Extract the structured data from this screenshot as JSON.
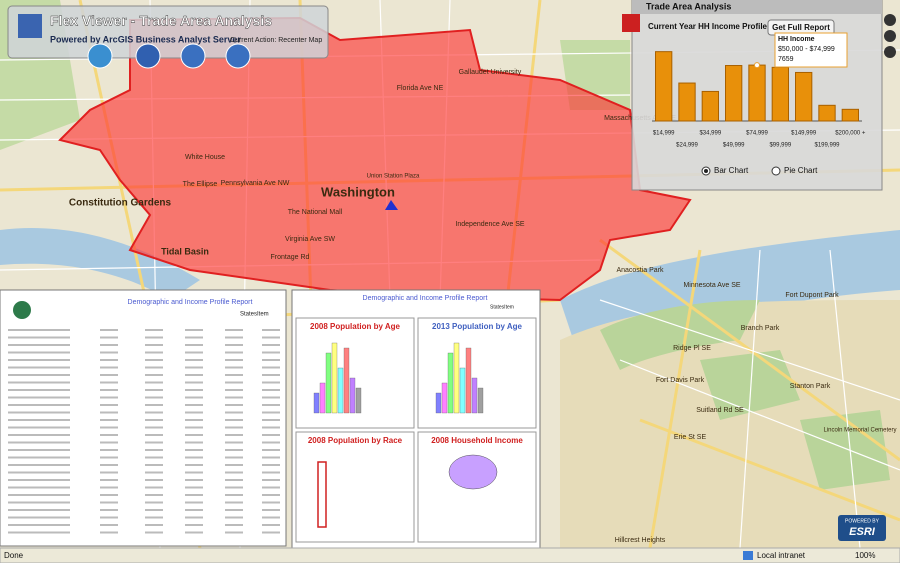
{
  "header": {
    "title": "Flex Viewer - Trade Area Analysis",
    "subtitle": "Powered by ArcGIS Business Analyst Server",
    "current_action": "Current Action: Recenter Map"
  },
  "panel": {
    "title": "Trade Area Analysis",
    "button": "Get Full Report",
    "chart_data": {
      "type": "bar",
      "title": "Current Year HH Income Profile",
      "categories": [
        "$14,999",
        "$24,999",
        "$34,999",
        "$49,999",
        "$74,999",
        "$99,999",
        "$149,999",
        "$199,999",
        "$200,000 +"
      ],
      "values": [
        9500,
        5200,
        4050,
        7600,
        7659,
        7350,
        6650,
        2150,
        1600
      ],
      "color": "#e8900a",
      "ylim": [
        0,
        10000
      ]
    },
    "tooltip": {
      "title": "HH Income",
      "range": "$50,000 - $74,999"
    },
    "options": [
      "Bar Chart",
      "Pie Chart"
    ]
  },
  "map": {
    "labels": [
      "Washington",
      "Constitution Gardens",
      "The Ellipse",
      "The National Mall",
      "Tidal Basin",
      "White House",
      "Pennsylvania Ave NW",
      "Massachusetts Ave NE",
      "Florida Ave NE",
      "Independence Ave SE",
      "Anacostia Park",
      "Fort Davis Park",
      "Branch Park",
      "Fort Dupont Park",
      "Stanton Park",
      "Lincoln Memorial Cemetery",
      "Gallaudet University",
      "Union Station Plaza",
      "Frontage Rd",
      "Virginia Ave SW",
      "Suitland Rd SE",
      "Ridge Pl SE",
      "Erie St SE",
      "Minnesota Ave SE",
      "Hillcrest Heights"
    ]
  },
  "report": {
    "title": "Demographic and Income Profile Report",
    "subtitle": "StatesItem",
    "charts": [
      "2008 Population by Age",
      "2013 Population by Age",
      "2008 Population by Race",
      "2008 Household Income"
    ]
  },
  "status": {
    "left": "Done",
    "zone": "Local intranet",
    "zoom": "100%"
  },
  "logo": {
    "top": "POWERED BY",
    "brand": "ESRI"
  }
}
